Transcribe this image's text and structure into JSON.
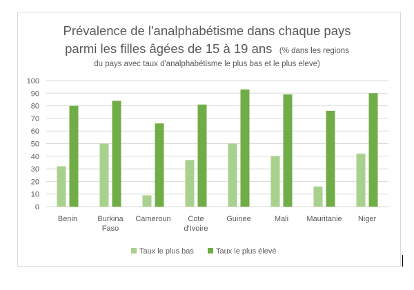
{
  "chart_data": {
    "type": "bar",
    "title_line1": "Prévalence de l'analphabétisme dans chaque pays",
    "title_line2": "parmi les filles âgées de 15 à 19 ans",
    "title_note_line1": "(% dans les regions",
    "title_note_line2": "du pays avec taux d'analphabétisme le plus bas et le plus eleve)",
    "categories": [
      [
        "Benin"
      ],
      [
        "Burkina",
        "Faso"
      ],
      [
        "Cameroun"
      ],
      [
        "Cote",
        "d'Ivoire"
      ],
      [
        "Guinee"
      ],
      [
        "Mali"
      ],
      [
        "Mauritanie"
      ],
      [
        "Niger"
      ]
    ],
    "series": [
      {
        "name": "Taux le plus bas",
        "color": "#a9d18e",
        "values": [
          32,
          50,
          9,
          37,
          50,
          40,
          16,
          42
        ]
      },
      {
        "name": "Taux le plus élevé",
        "color": "#70ad47",
        "values": [
          80,
          84,
          66,
          81,
          93,
          89,
          76,
          90
        ]
      }
    ],
    "ylim": [
      0,
      100
    ],
    "yticks": [
      0,
      10,
      20,
      30,
      40,
      50,
      60,
      70,
      80,
      90,
      100
    ],
    "grid": true,
    "legend": "bottom"
  }
}
